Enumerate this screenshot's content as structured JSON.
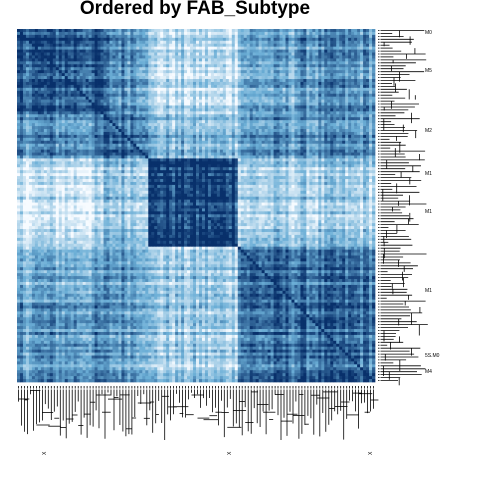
{
  "chart_data": {
    "type": "heatmap",
    "title": "Ordered by FAB_Subtype",
    "xlabel": "",
    "ylabel": "",
    "matrix_kind": "sample-sample correlation, samples ordered by FAB_Subtype",
    "n_samples": 120,
    "group_sizes": [
      29,
      15,
      30,
      19,
      27
    ],
    "group_mean_level": [
      [
        0.82,
        0.62,
        0.18,
        0.48,
        0.58
      ],
      [
        0.62,
        0.78,
        0.4,
        0.58,
        0.58
      ],
      [
        0.18,
        0.4,
        0.95,
        0.3,
        0.3
      ],
      [
        0.48,
        0.58,
        0.3,
        0.78,
        0.72
      ],
      [
        0.58,
        0.58,
        0.3,
        0.72,
        0.75
      ]
    ],
    "color_scale": {
      "low": "#f7fbff",
      "mid": "#6baed6",
      "high": "#08306b",
      "domain": [
        0,
        1
      ]
    },
    "row_labels_visible": [
      "M0",
      "M5",
      "M2",
      "M1",
      "M1",
      "M1",
      "5S.M0",
      "M4"
    ],
    "column_labels_visible": [
      "X"
    ],
    "legend": "none",
    "grid": false
  }
}
